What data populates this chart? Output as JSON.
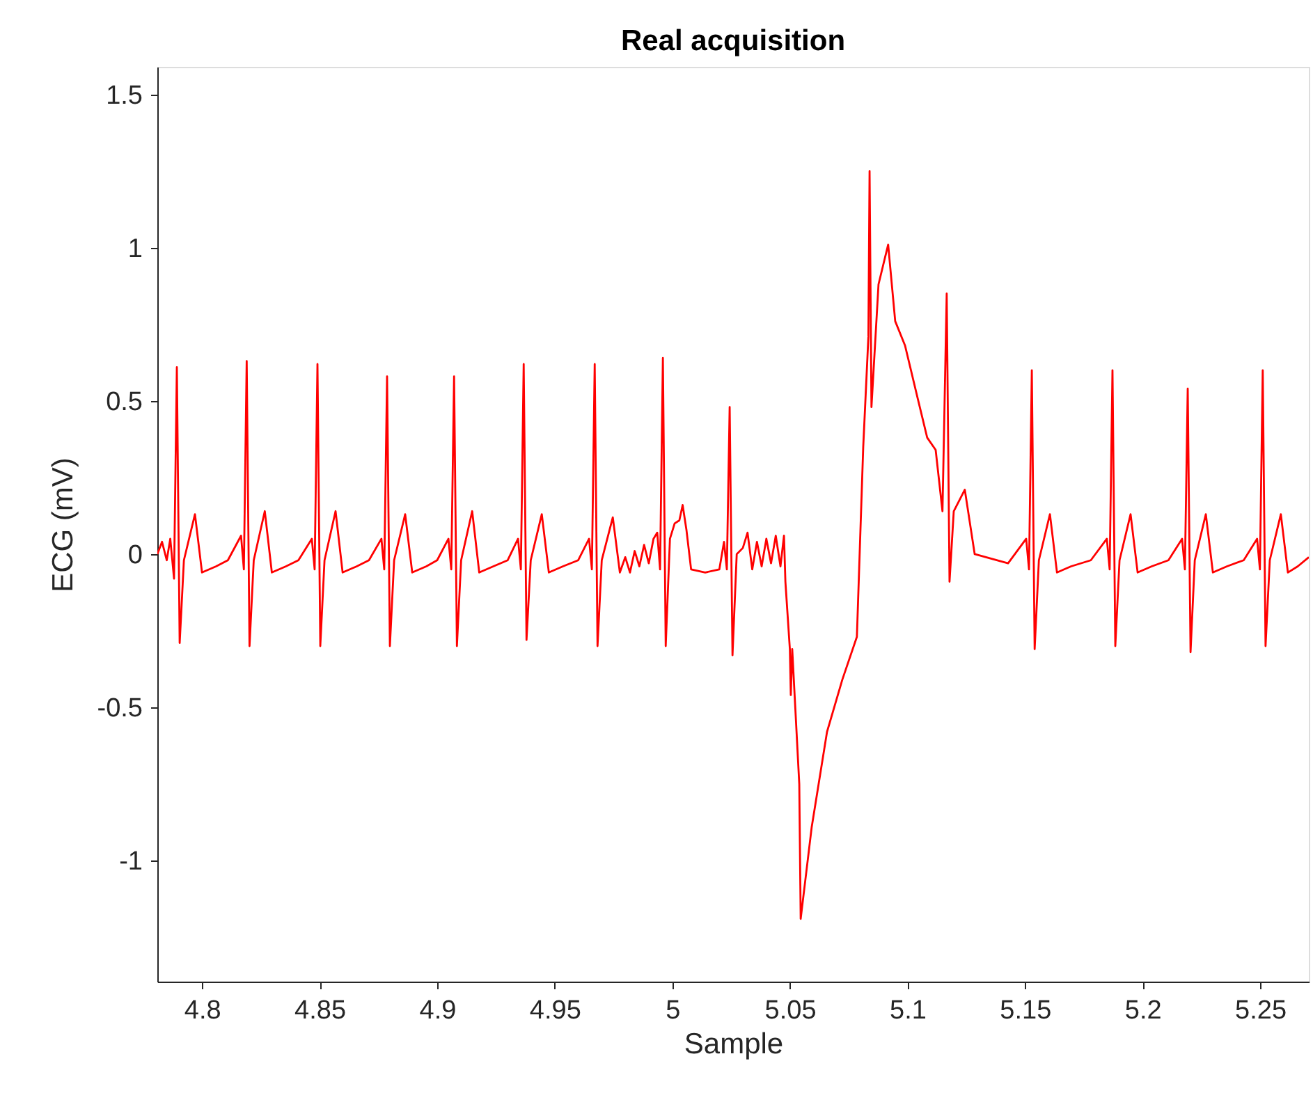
{
  "chart_data": {
    "type": "line",
    "title": "Real acquisition",
    "xlabel": "Sample",
    "ylabel": "ECG (mV)",
    "xlim": [
      4.781,
      5.2707
    ],
    "ylim": [
      -1.395,
      1.59
    ],
    "xticks": [
      4.8,
      4.85,
      4.9,
      4.95,
      5,
      5.05,
      5.1,
      5.15,
      5.2,
      5.25
    ],
    "yticks": [
      -1,
      -0.5,
      0,
      0.5,
      1,
      1.5
    ],
    "line_style": "solid",
    "x": [
      4.781,
      4.783,
      4.785,
      4.7865,
      4.7881,
      4.7893,
      4.7905,
      4.7923,
      4.797,
      4.8,
      4.806,
      4.811,
      4.8166,
      4.8178,
      4.819,
      4.8202,
      4.822,
      4.8267,
      4.8297,
      4.8357,
      4.841,
      4.8467,
      4.8479,
      4.8491,
      4.8503,
      4.8521,
      4.8568,
      4.8598,
      4.8658,
      4.871,
      4.8763,
      4.8775,
      4.8787,
      4.8799,
      4.8817,
      4.8864,
      4.8894,
      4.8954,
      4.9,
      4.9048,
      4.906,
      4.9072,
      4.9084,
      4.9102,
      4.9149,
      4.9179,
      4.9239,
      4.93,
      4.9344,
      4.9356,
      4.9368,
      4.938,
      4.9398,
      4.9445,
      4.9475,
      4.9535,
      4.96,
      4.9646,
      4.9658,
      4.967,
      4.9682,
      4.97,
      4.9747,
      4.9777,
      4.98,
      4.982,
      4.984,
      4.986,
      4.988,
      4.99,
      4.992,
      4.9936,
      4.9948,
      4.996,
      4.9972,
      4.999,
      5.001,
      5.003,
      5.0044,
      5.006,
      5.008,
      5.014,
      5.02,
      5.022,
      5.0232,
      5.0244,
      5.0256,
      5.0274,
      5.03,
      5.032,
      5.034,
      5.036,
      5.038,
      5.04,
      5.042,
      5.044,
      5.046,
      5.0475,
      5.0481,
      5.05,
      5.0504,
      5.051,
      5.054,
      5.0546,
      5.0593,
      5.0658,
      5.0723,
      5.0785,
      5.0812,
      5.0834,
      5.0839,
      5.0847,
      5.0877,
      5.0918,
      5.0948,
      5.099,
      5.1043,
      5.1084,
      5.112,
      5.1149,
      5.1167,
      5.1179,
      5.1197,
      5.1244,
      5.1286,
      5.1428,
      5.1505,
      5.1517,
      5.1529,
      5.1541,
      5.1559,
      5.1606,
      5.1636,
      5.1696,
      5.178,
      5.1848,
      5.186,
      5.1872,
      5.1884,
      5.1902,
      5.1949,
      5.1979,
      5.2039,
      5.211,
      5.2168,
      5.218,
      5.2192,
      5.2204,
      5.2222,
      5.2269,
      5.2299,
      5.2359,
      5.243,
      5.2487,
      5.2499,
      5.2511,
      5.2523,
      5.2541,
      5.2588,
      5.2618,
      5.266,
      5.2707
    ],
    "series": [
      {
        "color": "#ff0000",
        "values": [
          0.0,
          0.04,
          -0.02,
          0.05,
          -0.08,
          0.61,
          -0.29,
          -0.02,
          0.13,
          -0.06,
          -0.04,
          -0.02,
          0.06,
          -0.05,
          0.63,
          -0.3,
          -0.02,
          0.14,
          -0.06,
          -0.04,
          -0.02,
          0.05,
          -0.05,
          0.62,
          -0.3,
          -0.02,
          0.14,
          -0.06,
          -0.04,
          -0.02,
          0.05,
          -0.05,
          0.58,
          -0.3,
          -0.02,
          0.13,
          -0.06,
          -0.04,
          -0.02,
          0.05,
          -0.05,
          0.58,
          -0.3,
          -0.02,
          0.14,
          -0.06,
          -0.04,
          -0.02,
          0.05,
          -0.05,
          0.62,
          -0.28,
          -0.02,
          0.13,
          -0.06,
          -0.04,
          -0.02,
          0.05,
          -0.05,
          0.62,
          -0.3,
          -0.02,
          0.12,
          -0.06,
          -0.01,
          -0.06,
          0.01,
          -0.04,
          0.03,
          -0.03,
          0.05,
          0.07,
          -0.05,
          0.64,
          -0.3,
          0.05,
          0.1,
          0.11,
          0.16,
          0.08,
          -0.05,
          -0.06,
          -0.05,
          0.04,
          -0.05,
          0.48,
          -0.33,
          0.0,
          0.02,
          0.07,
          -0.05,
          0.04,
          -0.04,
          0.05,
          -0.03,
          0.06,
          -0.04,
          0.06,
          -0.09,
          -0.31,
          -0.46,
          -0.31,
          -0.75,
          -1.19,
          -0.89,
          -0.58,
          -0.41,
          -0.27,
          0.35,
          0.71,
          1.25,
          0.48,
          0.88,
          1.01,
          0.76,
          0.68,
          0.51,
          0.38,
          0.34,
          0.14,
          0.85,
          -0.09,
          0.14,
          0.21,
          0.0,
          -0.03,
          0.05,
          -0.05,
          0.6,
          -0.31,
          -0.02,
          0.13,
          -0.06,
          -0.04,
          -0.02,
          0.05,
          -0.05,
          0.6,
          -0.3,
          -0.02,
          0.13,
          -0.06,
          -0.04,
          -0.02,
          0.05,
          -0.05,
          0.54,
          -0.32,
          -0.02,
          0.13,
          -0.06,
          -0.04,
          -0.02,
          0.05,
          -0.05,
          0.6,
          -0.3,
          -0.02,
          0.13,
          -0.06,
          -0.04,
          -0.01
        ]
      }
    ]
  }
}
